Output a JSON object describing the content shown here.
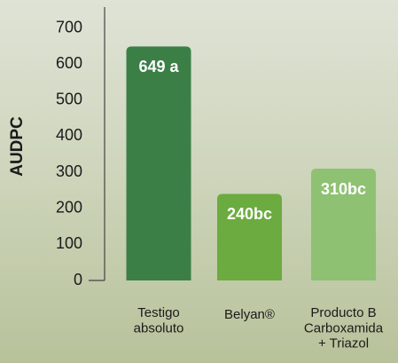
{
  "chart_data": {
    "type": "bar",
    "y_label": "AUDPC",
    "categories": [
      "Testigo\nabsoluto",
      "Belyan®",
      "Producto B\nCarboxamida\n+ Triazol"
    ],
    "values": [
      649,
      240,
      310
    ],
    "value_labels": [
      "649 a",
      "240bc",
      "310bc"
    ],
    "colors": [
      "#3b7f47",
      "#6cab3f",
      "#8fc173"
    ],
    "ylim": [
      0,
      750
    ],
    "yticks": [
      0,
      100,
      200,
      300,
      400,
      500,
      600,
      700
    ]
  }
}
